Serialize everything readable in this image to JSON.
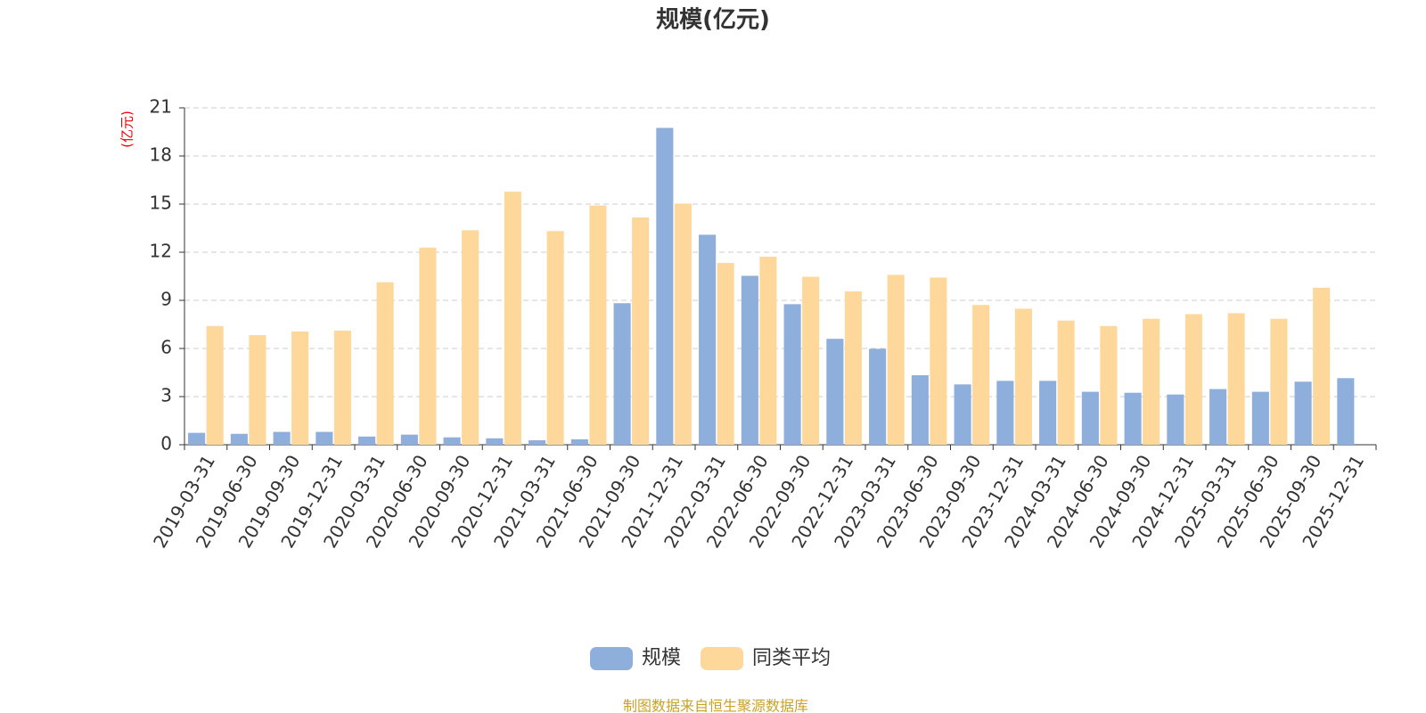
{
  "chart_data": {
    "type": "bar",
    "title": "规模(亿元)",
    "y_unit": "(亿元)",
    "categories": [
      "2019-03-31",
      "2019-06-30",
      "2019-09-30",
      "2019-12-31",
      "2020-03-31",
      "2020-06-30",
      "2020-09-30",
      "2020-12-31",
      "2021-03-31",
      "2021-06-30",
      "2021-09-30",
      "2021-12-31",
      "2022-03-31",
      "2022-06-30",
      "2022-09-30",
      "2022-12-31",
      "2023-03-31",
      "2023-06-30",
      "2023-09-30",
      "2023-12-31",
      "2024-03-31",
      "2024-06-30",
      "2024-09-30",
      "2024-12-31",
      "2025-03-31",
      "2025-06-30",
      "2025-09-30",
      "2025-12-31"
    ],
    "series": [
      {
        "name": "规模",
        "color": "#8eaedc",
        "values": [
          0.74,
          0.68,
          0.8,
          0.8,
          0.51,
          0.63,
          0.46,
          0.4,
          0.28,
          0.34,
          8.82,
          19.75,
          13.09,
          10.53,
          8.76,
          6.6,
          5.98,
          4.33,
          3.76,
          3.98,
          3.98,
          3.3,
          3.24,
          3.13,
          3.47,
          3.3,
          3.93,
          4.15
        ]
      },
      {
        "name": "同类平均",
        "color": "#fdd89a",
        "values": [
          7.4,
          6.83,
          7.06,
          7.11,
          10.13,
          12.29,
          13.37,
          15.77,
          13.32,
          14.91,
          14.17,
          15.03,
          11.33,
          11.72,
          10.47,
          9.56,
          10.59,
          10.42,
          8.71,
          8.48,
          7.74,
          7.4,
          7.85,
          8.14,
          8.2,
          7.85,
          9.79,
          null
        ]
      }
    ],
    "ylim": [
      0,
      21
    ],
    "yticks": [
      0,
      3,
      6,
      9,
      12,
      15,
      18,
      21
    ],
    "grid": true,
    "source": "制图数据来自恒生聚源数据库"
  }
}
